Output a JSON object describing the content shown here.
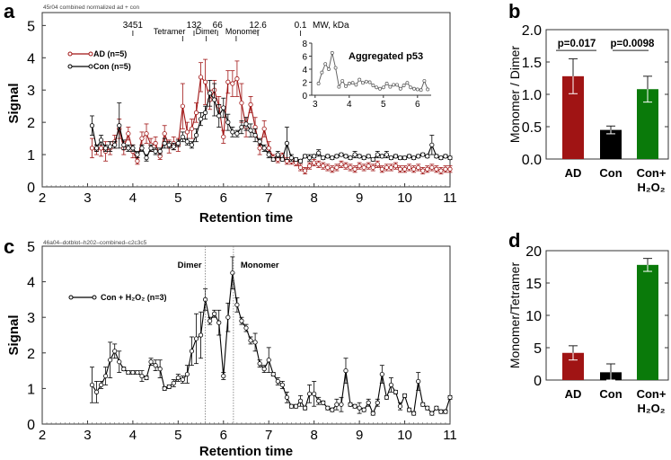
{
  "colors": {
    "ad": "#a01414",
    "con": "#000000",
    "h2o2": "#0a7a0a",
    "axis": "#222222"
  },
  "chart_data": [
    {
      "panel": "a",
      "type": "line",
      "file_label": "45r04 combined normalized ad + con",
      "xlabel": "Retention time",
      "ylabel": "Signal",
      "xlim": [
        2,
        11
      ],
      "ylim": [
        0,
        5.4
      ],
      "xticks": [
        2,
        3,
        4,
        5,
        6,
        7,
        8,
        9,
        10,
        11
      ],
      "yticks": [
        0,
        1,
        2,
        3,
        4,
        5
      ],
      "top_axis": {
        "label": "MW, kDa",
        "ticks": [
          {
            "x": 4.0,
            "label": "3451"
          },
          {
            "x": 5.35,
            "label": "132"
          },
          {
            "x": 5.87,
            "label": "66"
          },
          {
            "x": 6.76,
            "label": "12.6"
          },
          {
            "x": 7.7,
            "label": "0.1"
          }
        ]
      },
      "annotations": [
        {
          "x": 5.1,
          "label": "Tetramer"
        },
        {
          "x": 5.62,
          "label": "Dimer"
        },
        {
          "x": 6.28,
          "label": "Monomer"
        }
      ],
      "legend": "top-left",
      "x_start": 3.1,
      "x_step": 0.1,
      "series": [
        {
          "name": "AD (n=5)",
          "color": "#a01414",
          "values": [
            1.2,
            1.15,
            1.2,
            1.1,
            1.2,
            1.4,
            1.8,
            1.2,
            1.65,
            1.1,
            0.8,
            1.5,
            1.65,
            1.3,
            1.35,
            0.95,
            1.65,
            1.25,
            1.35,
            1.3,
            2.5,
            1.7,
            1.8,
            2.3,
            3.4,
            3.25,
            2.7,
            3.0,
            2.5,
            1.55,
            3.25,
            3.2,
            3.35,
            2.6,
            1.85,
            2.55,
            1.85,
            1.2,
            1.8,
            1.2,
            0.9,
            0.85,
            0.95,
            0.8,
            0.8,
            0.75,
            0.6,
            0.5,
            0.65,
            0.75,
            0.7,
            0.65,
            0.6,
            0.55,
            0.6,
            0.7,
            0.65,
            0.6,
            0.55,
            0.65,
            0.6,
            0.65,
            0.6,
            0.7,
            0.55,
            0.6,
            0.6,
            0.65,
            0.55,
            0.55,
            0.6,
            0.55,
            0.6,
            0.5,
            0.55,
            0.6,
            0.55,
            0.5,
            0.55,
            0.55
          ],
          "errors": [
            0.3,
            0.15,
            0.25,
            0.3,
            0.2,
            0.2,
            0.3,
            0.2,
            0.2,
            0.2,
            0.1,
            0.2,
            0.3,
            0.2,
            0.2,
            0.1,
            0.25,
            0.2,
            0.2,
            0.2,
            0.7,
            0.3,
            0.3,
            0.3,
            0.45,
            0.7,
            0.3,
            0.3,
            0.3,
            0.2,
            0.35,
            0.4,
            0.55,
            0.6,
            0.3,
            0.25,
            0.3,
            0.2,
            0.25,
            0.2,
            0.1,
            0.1,
            0.1,
            0.1,
            0.1,
            0.1,
            0.1,
            0.1,
            0.1,
            0.1,
            0.1,
            0.1,
            0.1,
            0.1,
            0.1,
            0.1,
            0.1,
            0.1,
            0.1,
            0.1,
            0.1,
            0.1,
            0.1,
            0.1,
            0.1,
            0.1,
            0.1,
            0.1,
            0.1,
            0.1,
            0.1,
            0.1,
            0.1,
            0.1,
            0.1,
            0.1,
            0.1,
            0.1,
            0.1,
            0.1
          ]
        },
        {
          "name": "Con (n=5)",
          "color": "#000000",
          "values": [
            1.9,
            1.2,
            1.45,
            1.2,
            1.25,
            1.3,
            1.9,
            1.3,
            1.2,
            1.2,
            1.0,
            1.2,
            0.9,
            1.2,
            1.1,
            1.1,
            1.35,
            1.3,
            1.25,
            1.35,
            1.55,
            1.4,
            1.3,
            1.6,
            2.1,
            2.3,
            2.9,
            2.7,
            2.2,
            2.45,
            2.0,
            1.7,
            1.65,
            1.85,
            1.95,
            1.75,
            1.6,
            1.4,
            1.2,
            1.0,
            0.85,
            1.0,
            0.85,
            1.35,
            0.9,
            0.85,
            0.8,
            0.95,
            0.9,
            0.95,
            1.05,
            0.9,
            0.95,
            0.9,
            0.95,
            1.0,
            0.95,
            0.9,
            1.0,
            0.95,
            0.9,
            0.95,
            0.85,
            1.0,
            0.95,
            1.0,
            0.9,
            0.95,
            0.9,
            0.9,
            0.95,
            0.9,
            0.95,
            1.0,
            0.95,
            1.3,
            0.95,
            0.9,
            0.95,
            0.9
          ],
          "errors": [
            0.3,
            0.1,
            0.15,
            0.1,
            0.15,
            0.1,
            0.7,
            0.15,
            0.1,
            0.1,
            0.1,
            0.1,
            0.1,
            0.1,
            0.1,
            0.1,
            0.15,
            0.1,
            0.1,
            0.1,
            0.15,
            0.1,
            0.1,
            0.2,
            0.2,
            0.2,
            0.4,
            0.5,
            0.35,
            0.3,
            0.25,
            0.15,
            0.1,
            0.2,
            0.2,
            0.2,
            0.2,
            0.1,
            0.1,
            0.1,
            0.05,
            0.1,
            0.05,
            0.5,
            0.1,
            0.05,
            0.05,
            0.05,
            0.1,
            0.05,
            0.1,
            0.05,
            0.05,
            0.05,
            0.05,
            0.05,
            0.05,
            0.05,
            0.1,
            0.05,
            0.05,
            0.05,
            0.05,
            0.1,
            0.05,
            0.1,
            0.05,
            0.05,
            0.05,
            0.05,
            0.05,
            0.05,
            0.05,
            0.05,
            0.05,
            0.3,
            0.05,
            0.05,
            0.05,
            0.05
          ]
        }
      ],
      "inset": {
        "title": "Aggregated p53",
        "xlim": [
          2.9,
          6.4
        ],
        "ylim": [
          0,
          8
        ],
        "xticks": [
          3,
          4,
          5,
          6
        ],
        "yticks": [
          0,
          2,
          4,
          6,
          8
        ],
        "x_start": 3.1,
        "x_step": 0.1,
        "values": [
          1.8,
          3.5,
          4.8,
          4.0,
          6.5,
          4.2,
          1.3,
          2.2,
          1.4,
          1.8,
          1.9,
          1.6,
          2.4,
          1.9,
          2.1,
          2.0,
          1.5,
          1.2,
          1.0,
          1.2,
          1.8,
          1.3,
          1.6,
          1.6,
          1.0,
          1.5,
          1.9,
          1.2,
          1.0,
          0.9,
          0.8,
          2.2,
          0.9
        ]
      }
    },
    {
      "panel": "b",
      "type": "bar",
      "ylabel": "Monomer / Dimer",
      "ylim": [
        0,
        2.0
      ],
      "yticks": [
        "0.0",
        "0.5",
        "1.0",
        "1.5",
        "2.0"
      ],
      "categories": [
        "AD",
        "Con",
        "Con+\nH₂O₂"
      ],
      "values": [
        1.28,
        0.45,
        1.08
      ],
      "errors": [
        0.27,
        0.06,
        0.2
      ],
      "bar_colors": [
        "#a01414",
        "#000000",
        "#0a7a0a"
      ],
      "annotations": [
        {
          "between": [
            0,
            1
          ],
          "label": "p=0.017"
        },
        {
          "between": [
            1,
            2
          ],
          "label": "p=0.0098"
        }
      ]
    },
    {
      "panel": "c",
      "type": "line",
      "file_label": "46a04–dotblot–h202–combined–c2c3c5",
      "xlabel": "Retention time",
      "ylabel": "Signal",
      "xlim": [
        2,
        11
      ],
      "ylim": [
        0,
        5
      ],
      "xticks": [
        2,
        3,
        4,
        5,
        6,
        7,
        8,
        9,
        10,
        11
      ],
      "yticks": [
        0,
        1,
        2,
        3,
        4,
        5
      ],
      "markers": [
        {
          "x": 5.6,
          "label": "Dimer"
        },
        {
          "x": 6.22,
          "label": "Monomer"
        }
      ],
      "legend": "top-left",
      "x_start": 3.1,
      "x_step": 0.1,
      "series": [
        {
          "name": "Con + H₂O₂ (n=3)",
          "color": "#000000",
          "values": [
            1.1,
            0.9,
            1.1,
            1.35,
            1.8,
            2.05,
            1.75,
            1.55,
            1.45,
            1.45,
            1.45,
            1.35,
            1.3,
            1.75,
            1.65,
            1.55,
            1.0,
            1.05,
            1.15,
            1.3,
            1.25,
            1.4,
            2.05,
            2.4,
            2.5,
            3.5,
            2.9,
            3.1,
            2.85,
            1.35,
            3.0,
            4.25,
            3.35,
            2.9,
            2.7,
            2.35,
            2.3,
            1.7,
            1.55,
            1.8,
            1.4,
            1.2,
            1.1,
            0.75,
            0.5,
            0.5,
            0.65,
            0.45,
            0.85,
            0.85,
            0.65,
            0.6,
            0.45,
            0.4,
            0.55,
            0.55,
            1.5,
            0.55,
            0.5,
            0.45,
            0.4,
            0.6,
            0.3,
            0.6,
            1.4,
            0.75,
            1.1,
            0.9,
            0.5,
            0.8,
            0.4,
            0.3,
            1.2,
            0.55,
            0.45,
            0.3,
            0.45,
            0.35,
            0.35,
            0.75
          ],
          "errors": [
            0.5,
            0.3,
            0.1,
            0.25,
            0.5,
            0.2,
            0.3,
            0.05,
            0.05,
            0.05,
            0.05,
            0.15,
            0.05,
            0.1,
            0.15,
            0.25,
            0.05,
            0.05,
            0.1,
            0.1,
            0.1,
            0.25,
            0.4,
            0.7,
            0.65,
            0.3,
            0.1,
            0.1,
            0.35,
            0.1,
            0.4,
            0.45,
            0.2,
            0.1,
            0.1,
            0.1,
            0.25,
            0.1,
            0.1,
            0.35,
            0.05,
            0.1,
            0.1,
            0.15,
            0.05,
            0.05,
            0.15,
            0.05,
            0.25,
            0.35,
            0.1,
            0.05,
            0.05,
            0.05,
            0.15,
            0.2,
            0.35,
            0.05,
            0.05,
            0.15,
            0.05,
            0.1,
            0.05,
            0.1,
            0.25,
            0.05,
            0.2,
            0.05,
            0.1,
            0.05,
            0.05,
            0.05,
            0.25,
            0.05,
            0.05,
            0.05,
            0.05,
            0.05,
            0.05,
            0.05
          ]
        }
      ]
    },
    {
      "panel": "d",
      "type": "bar",
      "ylabel": "Monomer/Tetramer",
      "ylim": [
        0,
        20
      ],
      "yticks": [
        "0",
        "5",
        "10",
        "15",
        "20"
      ],
      "categories": [
        "AD",
        "Con",
        "Con+\nH₂O₂"
      ],
      "values": [
        4.2,
        1.2,
        17.8
      ],
      "errors": [
        1.1,
        1.3,
        1.0
      ],
      "bar_colors": [
        "#a01414",
        "#000000",
        "#0a7a0a"
      ]
    }
  ]
}
